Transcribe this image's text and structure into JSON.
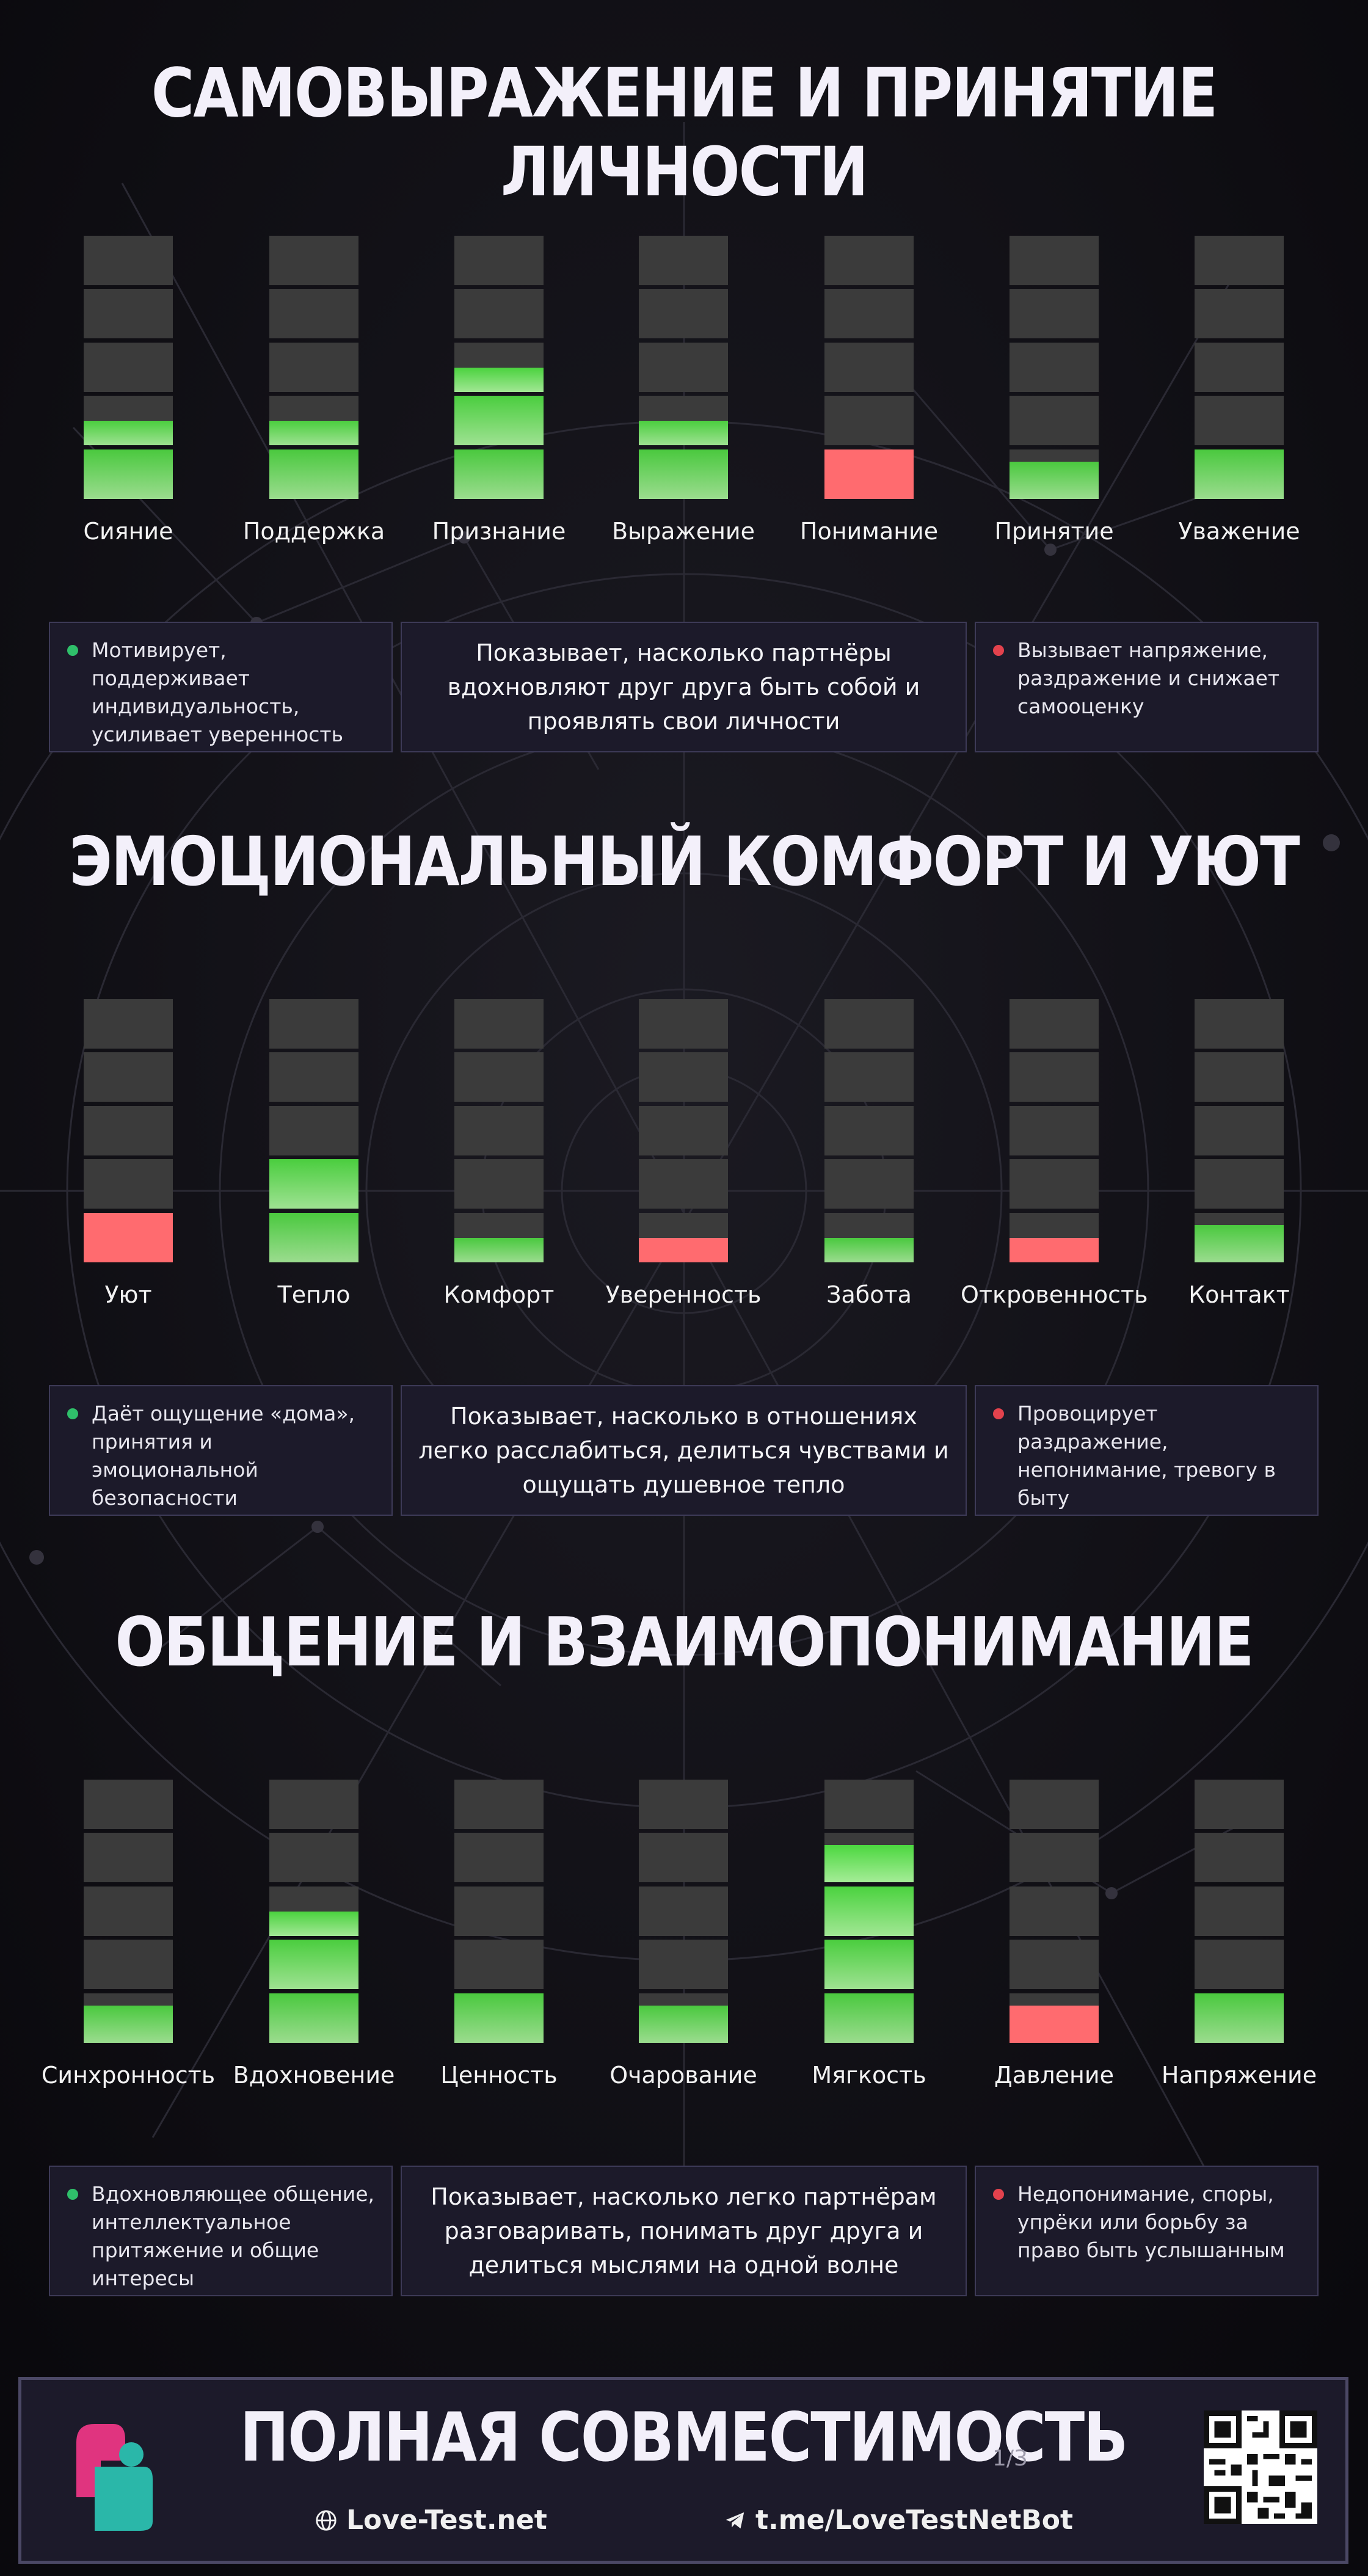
{
  "sections": [
    {
      "title": "САМОВЫРАЖЕНИЕ И ПРИНЯТИЕ ЛИЧНОСТИ",
      "bars": [
        {
          "label": "Сияние",
          "level": 1.5,
          "tone": "positive"
        },
        {
          "label": "Поддержка",
          "level": 1.5,
          "tone": "positive"
        },
        {
          "label": "Признание",
          "level": 2.5,
          "tone": "positive"
        },
        {
          "label": "Выражение",
          "level": 1.5,
          "tone": "positive"
        },
        {
          "label": "Понимание",
          "level": 1.0,
          "tone": "negative"
        },
        {
          "label": "Принятие",
          "level": 0.75,
          "tone": "positive"
        },
        {
          "label": "Уважение",
          "level": 1.0,
          "tone": "positive"
        }
      ],
      "positive_text": "Мотивирует, поддерживает индивидуальность, усиливает уверенность",
      "description": "Показывает, насколько партнёры вдохновляют друг друга быть собой и проявлять свои личности",
      "negative_text": "Вызывает напряжение, раздражение и снижает самооценку"
    },
    {
      "title": "ЭМОЦИОНАЛЬНЫЙ КОМФОРТ И УЮТ",
      "bars": [
        {
          "label": "Уют",
          "level": 1.0,
          "tone": "negative"
        },
        {
          "label": "Тепло",
          "level": 2.0,
          "tone": "positive"
        },
        {
          "label": "Комфорт",
          "level": 0.5,
          "tone": "positive"
        },
        {
          "label": "Уверенность",
          "level": 0.5,
          "tone": "negative"
        },
        {
          "label": "Забота",
          "level": 0.5,
          "tone": "positive"
        },
        {
          "label": "Откровенность",
          "level": 0.5,
          "tone": "negative"
        },
        {
          "label": "Контакт",
          "level": 0.75,
          "tone": "positive"
        }
      ],
      "positive_text": "Даёт ощущение «дома», принятия и эмоциональной безопасности",
      "description": "Показывает, насколько в отношениях легко расслабиться, делиться чувствами и ощущать душевное тепло",
      "negative_text": "Провоцирует раздражение, непонимание, тревогу в быту"
    },
    {
      "title": "ОБЩЕНИЕ И ВЗАИМОПОНИМАНИЕ",
      "bars": [
        {
          "label": "Синхронность",
          "level": 0.75,
          "tone": "positive"
        },
        {
          "label": "Вдохновение",
          "level": 2.5,
          "tone": "positive"
        },
        {
          "label": "Ценность",
          "level": 1.0,
          "tone": "positive"
        },
        {
          "label": "Очарование",
          "level": 0.75,
          "tone": "positive"
        },
        {
          "label": "Мягкость",
          "level": 3.75,
          "tone": "positive"
        },
        {
          "label": "Давление",
          "level": 0.75,
          "tone": "negative"
        },
        {
          "label": "Напряжение",
          "level": 1.0,
          "tone": "positive"
        }
      ],
      "positive_text": "Вдохновляющее общение, интеллектуальное притяжение и общие интересы",
      "description": "Показывает, насколько легко партнёрам разговаривать, понимать друг друга и делиться мыслями на одной волне",
      "negative_text": "Недопонимание, споры, упрёки или борьбу за право быть услышанным"
    }
  ],
  "scale_max": 5,
  "colors": {
    "positive_top": "#4cdc3f",
    "positive_bottom": "#a8f29a",
    "negative": "#ff6b6f",
    "empty": "#3b3b3b",
    "dot_positive": "#2fbf6a",
    "dot_negative": "#e3424d"
  },
  "footer": {
    "title": "ПОЛНАЯ СОВМЕСТИМОСТЬ",
    "page": "1/3",
    "site_link": "Love-Test.net",
    "bot_link": "t.me/LoveTestNetBot",
    "site_icon": "globe-icon",
    "bot_icon": "telegram-icon"
  }
}
